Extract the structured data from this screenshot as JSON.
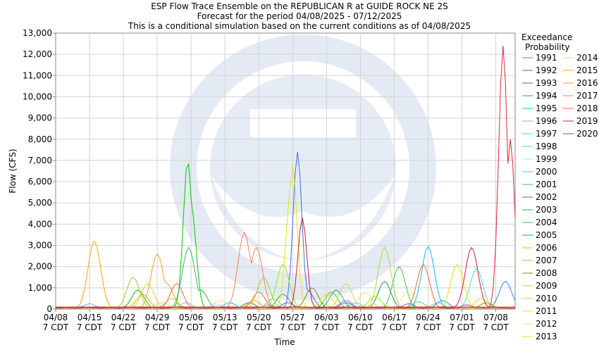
{
  "chart_data": {
    "type": "line",
    "title": "ESP Flow Trace Ensemble on the REPUBLICAN R at GUIDE ROCK NE 2S",
    "subtitle": "Forecast for the period 04/08/2025 - 07/12/2025",
    "subtitle2": "This is a conditional simulation based on the current conditions as of 04/08/2025",
    "xlabel": "Time",
    "ylabel": "Flow (CFS)",
    "ylim": [
      0,
      13000
    ],
    "yticks": [
      "0",
      "1,000",
      "2,000",
      "3,000",
      "4,000",
      "5,000",
      "6,000",
      "7,000",
      "8,000",
      "9,000",
      "10,000",
      "11,000",
      "12,000",
      "13,000"
    ],
    "xlim": [
      0,
      95
    ],
    "xticks": [
      {
        "day": 0,
        "date": "04/08",
        "tz": "7 CDT"
      },
      {
        "day": 7,
        "date": "04/15",
        "tz": "7 CDT"
      },
      {
        "day": 14,
        "date": "04/22",
        "tz": "7 CDT"
      },
      {
        "day": 21,
        "date": "04/29",
        "tz": "7 CDT"
      },
      {
        "day": 28,
        "date": "05/06",
        "tz": "7 CDT"
      },
      {
        "day": 35,
        "date": "05/13",
        "tz": "7 CDT"
      },
      {
        "day": 42,
        "date": "05/20",
        "tz": "7 CDT"
      },
      {
        "day": 49,
        "date": "05/27",
        "tz": "7 CDT"
      },
      {
        "day": 56,
        "date": "06/03",
        "tz": "7 CDT"
      },
      {
        "day": 63,
        "date": "06/10",
        "tz": "7 CDT"
      },
      {
        "day": 70,
        "date": "06/17",
        "tz": "7 CDT"
      },
      {
        "day": 77,
        "date": "06/24",
        "tz": "7 CDT"
      },
      {
        "day": 84,
        "date": "07/01",
        "tz": "7 CDT"
      },
      {
        "day": 91,
        "date": "07/08",
        "tz": "7 CDT"
      }
    ],
    "grid": true,
    "legend_title": [
      "Exceedance",
      "Probability"
    ],
    "legend_placement": "right",
    "series": [
      {
        "name": "1991",
        "color": "#7b68ee",
        "peaks": [
          [
            60,
            400
          ],
          [
            73,
            250
          ]
        ]
      },
      {
        "name": "1992",
        "color": "#6a5acd",
        "peaks": [
          [
            48,
            300
          ],
          [
            85,
            200
          ]
        ]
      },
      {
        "name": "1993",
        "color": "#4169e1",
        "peaks": [
          [
            50,
            7400
          ],
          [
            52,
            900
          ],
          [
            60,
            300
          ]
        ]
      },
      {
        "name": "1994",
        "color": "#1e90ff",
        "peaks": [
          [
            93,
            1300
          ],
          [
            80,
            400
          ]
        ]
      },
      {
        "name": "1995",
        "color": "#00bfff",
        "peaks": [
          [
            77,
            2950
          ],
          [
            36,
            300
          ]
        ]
      },
      {
        "name": "1996",
        "color": "#5bc0de",
        "peaks": [
          [
            7,
            250
          ],
          [
            44,
            200
          ]
        ]
      },
      {
        "name": "1997",
        "color": "#40e0d0",
        "peaks": [
          [
            87,
            1900
          ],
          [
            27,
            300
          ]
        ]
      },
      {
        "name": "1998",
        "color": "#48d1cc",
        "peaks": [
          [
            62,
            300
          ],
          [
            75,
            350
          ]
        ]
      },
      {
        "name": "1999",
        "color": "#7fffd4",
        "peaks": [
          [
            33,
            250
          ],
          [
            55,
            300
          ]
        ]
      },
      {
        "name": "2000",
        "color": "#66cdaa",
        "peaks": [
          [
            45,
            500
          ],
          [
            79,
            300
          ]
        ]
      },
      {
        "name": "2001",
        "color": "#3cb371",
        "peaks": [
          [
            27.5,
            2900
          ],
          [
            30,
            900
          ]
        ]
      },
      {
        "name": "2002",
        "color": "#2e8b57",
        "peaks": [
          [
            68,
            1300
          ],
          [
            40,
            300
          ]
        ]
      },
      {
        "name": "2003",
        "color": "#20b24a",
        "peaks": [
          [
            58,
            900
          ],
          [
            47,
            700
          ]
        ]
      },
      {
        "name": "2004",
        "color": "#32cd32",
        "peaks": [
          [
            71,
            2000
          ],
          [
            57,
            800
          ]
        ]
      },
      {
        "name": "2005",
        "color": "#00c800",
        "peaks": [
          [
            27.3,
            7000
          ],
          [
            28.2,
            4500
          ],
          [
            17,
            900
          ]
        ]
      },
      {
        "name": "2006",
        "color": "#7cfc00",
        "peaks": [
          [
            47,
            2100
          ],
          [
            66,
            600
          ]
        ]
      },
      {
        "name": "2007",
        "color": "#9acd32",
        "peaks": [
          [
            16,
            1500
          ],
          [
            43,
            1500
          ]
        ]
      },
      {
        "name": "2008",
        "color": "#6b8e23",
        "peaks": [
          [
            53,
            1000
          ],
          [
            89,
            300
          ]
        ]
      },
      {
        "name": "2009",
        "color": "#b4d43c",
        "peaks": [
          [
            68,
            2900
          ],
          [
            24,
            500
          ]
        ]
      },
      {
        "name": "2010",
        "color": "#cddc39",
        "peaks": [
          [
            19,
            1200
          ],
          [
            60,
            1200
          ]
        ]
      },
      {
        "name": "2011",
        "color": "#e6e600",
        "peaks": [
          [
            49,
            6800
          ],
          [
            48.4,
            5000
          ],
          [
            83,
            2100
          ]
        ]
      },
      {
        "name": "2012",
        "color": "#f0e68c",
        "peaks": [
          [
            73,
            900
          ],
          [
            34,
            400
          ]
        ]
      },
      {
        "name": "2013",
        "color": "#ffd700",
        "peaks": [
          [
            56,
            700
          ],
          [
            88,
            500
          ]
        ]
      },
      {
        "name": "2014",
        "color": "#f5d76e",
        "peaks": [
          [
            64,
            800
          ],
          [
            22,
            300
          ]
        ]
      },
      {
        "name": "2015",
        "color": "#ffa500",
        "peaks": [
          [
            8,
            3200
          ],
          [
            18,
            700
          ],
          [
            41,
            400
          ]
        ]
      },
      {
        "name": "2016",
        "color": "#ff9f1a",
        "peaks": [
          [
            21,
            2600
          ],
          [
            23,
            1200
          ]
        ]
      },
      {
        "name": "2017",
        "color": "#ff7f50",
        "peaks": [
          [
            39,
            3600
          ],
          [
            41.5,
            2900
          ]
        ]
      },
      {
        "name": "2018",
        "color": "#ff6347",
        "peaks": [
          [
            25,
            1200
          ],
          [
            76,
            2100
          ],
          [
            42,
            800
          ]
        ]
      },
      {
        "name": "2019",
        "color": "#dc143c",
        "peaks": [
          [
            51,
            4300
          ],
          [
            86,
            2900
          ]
        ]
      },
      {
        "name": "2020",
        "color": "#e32636",
        "peaks": [
          [
            92.5,
            12400
          ],
          [
            94,
            8000
          ]
        ]
      }
    ]
  }
}
